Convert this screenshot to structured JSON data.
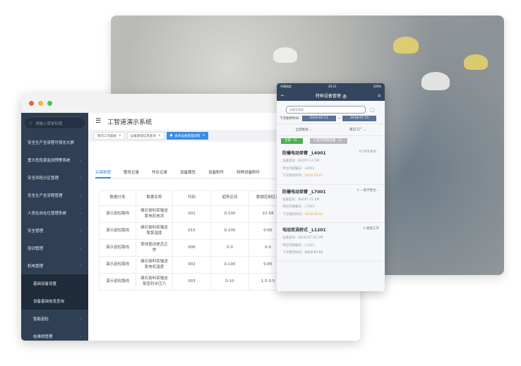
{
  "window": {
    "title": "工智道演示系统",
    "sidebar": {
      "search_placeholder": "请输入菜单标题",
      "items": [
        {
          "label": "安全生产全流程可视化大屏",
          "chev": ""
        },
        {
          "label": "重大危险源监测预警系统",
          "chev": "⌄"
        },
        {
          "label": "安全风险分区管理",
          "chev": "⌄"
        },
        {
          "label": "安全生产全流程管理",
          "chev": "⌄"
        },
        {
          "label": "人员在岗在位管理系统",
          "chev": "⌄"
        },
        {
          "label": "安全管理",
          "chev": "⌄"
        },
        {
          "label": "培训管理",
          "chev": "⌄"
        },
        {
          "label": "机电管理",
          "chev": "⌃"
        }
      ],
      "subitems": [
        {
          "label": "基础设备设置"
        },
        {
          "label": "设备基础信息查询"
        },
        {
          "label": "智能巡检",
          "chev": "⌄"
        },
        {
          "label": "检维修管理",
          "chev": "⌄"
        }
      ]
    },
    "tags": [
      {
        "label": "我的工作面板"
      },
      {
        "label": "设备基础信息查询"
      },
      {
        "label": "具体设备管理详情"
      }
    ],
    "tabs": [
      "关键数据",
      "整改记录",
      "作业记录",
      "设备属性",
      "设备附件",
      "特种设备附件"
    ],
    "table": {
      "headers": [
        "数据分类",
        "数据名称",
        "代码",
        "趋势区间",
        "数据控制区间"
      ],
      "rows": [
        [
          "演示巡检路线",
          "磷石膏料浆输送泵电机电流",
          "001",
          "0-100",
          "22-58"
        ],
        [
          "演示巡检路线",
          "磷石膏料浆输送泵泵温度",
          "015",
          "0-100",
          "0-65"
        ],
        [
          "演示巡检路线",
          "泵体震动是否正常",
          "006",
          "0-0",
          "0-0"
        ],
        [
          "演示巡检路线",
          "磷石膏料浆输送泵电机温度",
          "002",
          "0-100",
          "0-85"
        ],
        [
          "演示巡检路线",
          "磷石膏料浆输送泵密封水压力",
          "003",
          "0-10",
          "1.5-3.5"
        ]
      ]
    }
  },
  "phone": {
    "carrier": "中国电信",
    "time": "20:21",
    "battery": "100%",
    "title": "特种设备管理",
    "help": "?",
    "search_placeholder": "关键字搜索",
    "date_label": "下次更新时间:",
    "date_from": "2018-04-11",
    "date_sep": "~",
    "date_to": "2018-07-11",
    "filter1": "全部类别",
    "filter2": "南京工厂",
    "btn_all": "全部（3）",
    "btn_expiring": "只显示临期设备（2）",
    "cards": [
      {
        "title": "防爆电动单臂 _L4001",
        "loc": "C0冷冻分...",
        "model": "设备型号：BLD5T-14.5M",
        "code": "单位内部编号：L4001",
        "next_label": "下次更新时间：",
        "next": "2018-05-01",
        "warn": true
      },
      {
        "title": "防爆电动单臂 _L7001",
        "loc": "一期平整合...",
        "model": "设备型号：BLD5T-22.5M",
        "code": "单位内部编号：L7001",
        "next_label": "下次更新时间：",
        "next": "2018-05-01",
        "warn": true
      },
      {
        "title": "电动双涡桥式 _L1201",
        "loc": "磨煤工序",
        "model": "设备型号：QD32/5T-25.5M",
        "code": "单位内部编号：L1201",
        "next_label": "下次更新时间：",
        "next": "2018-07-01",
        "warn": false
      }
    ]
  },
  "colors": {
    "sidebar": "#304054",
    "accent": "#3a8ee6",
    "phone_nav": "#34465e",
    "green": "#4caf50",
    "warn": "#f0a020"
  }
}
